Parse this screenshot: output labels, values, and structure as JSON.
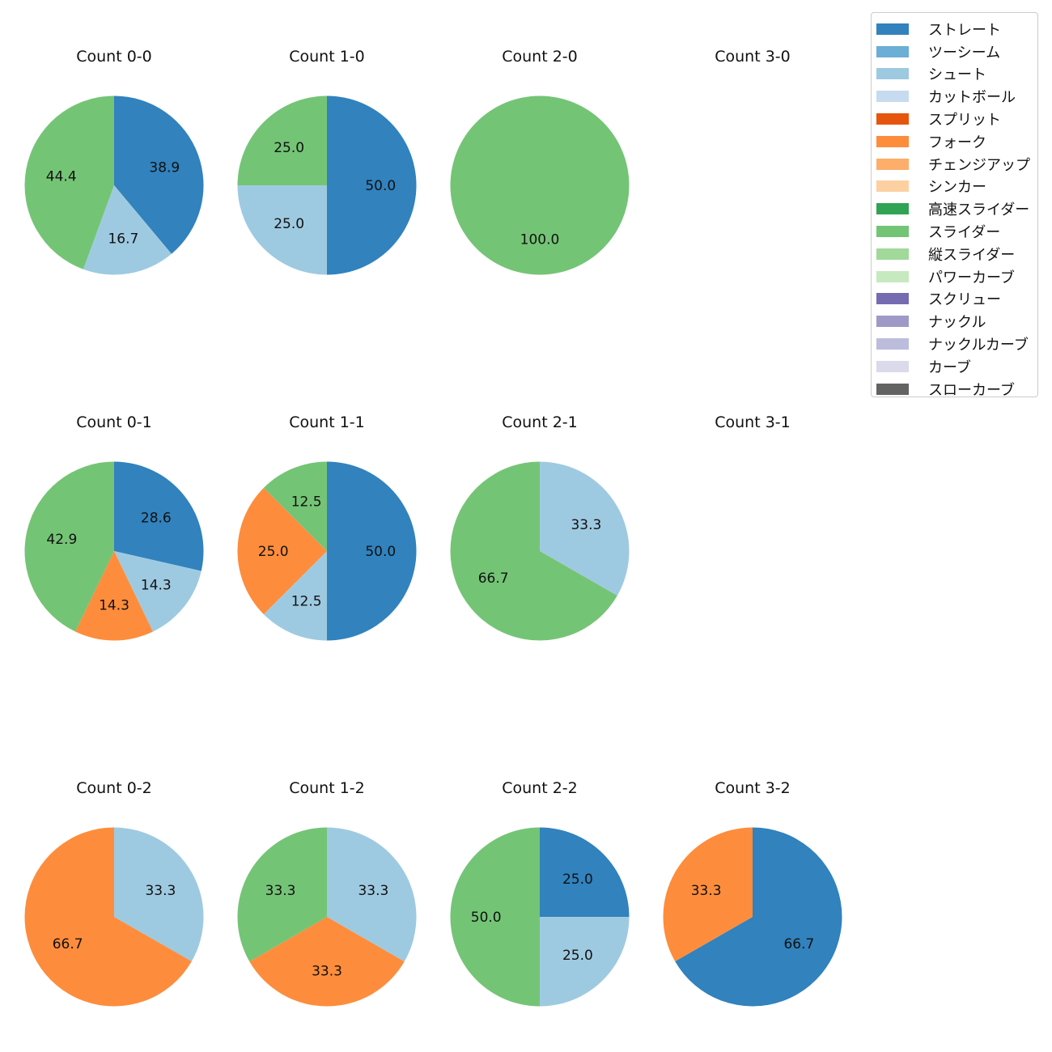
{
  "chart_data": {
    "type": "pie",
    "legend_position": "top-right",
    "legend": [
      {
        "name": "ストレート",
        "color": "#3182bd"
      },
      {
        "name": "ツーシーム",
        "color": "#6baed6"
      },
      {
        "name": "シュート",
        "color": "#9ecae1"
      },
      {
        "name": "カットボール",
        "color": "#c6dbef"
      },
      {
        "name": "スプリット",
        "color": "#e6550d"
      },
      {
        "name": "フォーク",
        "color": "#fd8d3c"
      },
      {
        "name": "チェンジアップ",
        "color": "#fdae6b"
      },
      {
        "name": "シンカー",
        "color": "#fdd0a2"
      },
      {
        "name": "高速スライダー",
        "color": "#31a354"
      },
      {
        "name": "スライダー",
        "color": "#74c476"
      },
      {
        "name": "縦スライダー",
        "color": "#a1d99b"
      },
      {
        "name": "パワーカーブ",
        "color": "#c7e9c0"
      },
      {
        "name": "スクリュー",
        "color": "#756bb1"
      },
      {
        "name": "ナックル",
        "color": "#9e9ac8"
      },
      {
        "name": "ナックルカーブ",
        "color": "#bcbddc"
      },
      {
        "name": "カーブ",
        "color": "#dadaeb"
      },
      {
        "name": "スローカーブ",
        "color": "#636363"
      }
    ],
    "pies": [
      {
        "title": "Count 0-0",
        "slices": [
          {
            "name": "ストレート",
            "value": 38.9,
            "label": "38.9"
          },
          {
            "name": "シュート",
            "value": 16.7,
            "label": "16.7"
          },
          {
            "name": "スライダー",
            "value": 44.4,
            "label": "44.4"
          }
        ]
      },
      {
        "title": "Count 1-0",
        "slices": [
          {
            "name": "ストレート",
            "value": 50.0,
            "label": "50.0"
          },
          {
            "name": "シュート",
            "value": 25.0,
            "label": "25.0"
          },
          {
            "name": "スライダー",
            "value": 25.0,
            "label": "25.0"
          }
        ]
      },
      {
        "title": "Count 2-0",
        "slices": [
          {
            "name": "スライダー",
            "value": 100.0,
            "label": "100.0"
          }
        ]
      },
      {
        "title": "Count 3-0",
        "slices": []
      },
      {
        "title": "Count 0-1",
        "slices": [
          {
            "name": "ストレート",
            "value": 28.6,
            "label": "28.6"
          },
          {
            "name": "シュート",
            "value": 14.3,
            "label": "14.3"
          },
          {
            "name": "フォーク",
            "value": 14.3,
            "label": "14.3"
          },
          {
            "name": "スライダー",
            "value": 42.9,
            "label": "42.9"
          }
        ]
      },
      {
        "title": "Count 1-1",
        "slices": [
          {
            "name": "ストレート",
            "value": 50.0,
            "label": "50.0"
          },
          {
            "name": "シュート",
            "value": 12.5,
            "label": "12.5"
          },
          {
            "name": "フォーク",
            "value": 25.0,
            "label": "25.0"
          },
          {
            "name": "スライダー",
            "value": 12.5,
            "label": "12.5"
          }
        ]
      },
      {
        "title": "Count 2-1",
        "slices": [
          {
            "name": "シュート",
            "value": 33.3,
            "label": "33.3"
          },
          {
            "name": "スライダー",
            "value": 66.7,
            "label": "66.7"
          }
        ]
      },
      {
        "title": "Count 3-1",
        "slices": []
      },
      {
        "title": "Count 0-2",
        "slices": [
          {
            "name": "シュート",
            "value": 33.3,
            "label": "33.3"
          },
          {
            "name": "フォーク",
            "value": 66.7,
            "label": "66.7"
          }
        ]
      },
      {
        "title": "Count 1-2",
        "slices": [
          {
            "name": "シュート",
            "value": 33.3,
            "label": "33.3"
          },
          {
            "name": "フォーク",
            "value": 33.3,
            "label": "33.3"
          },
          {
            "name": "スライダー",
            "value": 33.3,
            "label": "33.3"
          }
        ]
      },
      {
        "title": "Count 2-2",
        "slices": [
          {
            "name": "ストレート",
            "value": 25.0,
            "label": "25.0"
          },
          {
            "name": "シュート",
            "value": 25.0,
            "label": "25.0"
          },
          {
            "name": "スライダー",
            "value": 50.0,
            "label": "50.0"
          }
        ]
      },
      {
        "title": "Count 3-2",
        "slices": [
          {
            "name": "ストレート",
            "value": 66.7,
            "label": "66.7"
          },
          {
            "name": "フォーク",
            "value": 33.3,
            "label": "33.3"
          }
        ]
      }
    ]
  }
}
